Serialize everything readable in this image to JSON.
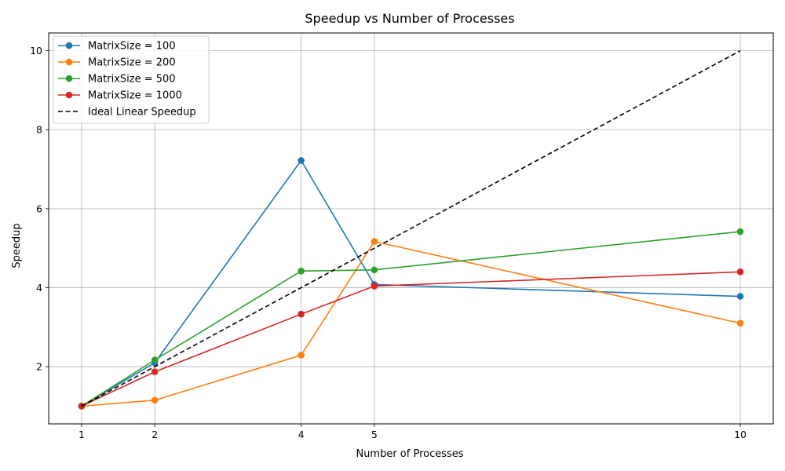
{
  "chart_data": {
    "type": "line",
    "title": "Speedup vs Number of Processes",
    "xlabel": "Number of Processes",
    "ylabel": "Speedup",
    "x": [
      1,
      2,
      4,
      5,
      10
    ],
    "x_ticks": [
      "1",
      "2",
      "4",
      "5",
      "10"
    ],
    "y_ticks": [
      "2",
      "4",
      "6",
      "8",
      "10"
    ],
    "xlim": [
      0.55,
      10.45
    ],
    "ylim": [
      0.55,
      10.45
    ],
    "grid": true,
    "legend_position": "top-left",
    "series": [
      {
        "name": "MatrixSize = 100",
        "color": "#1f77b4",
        "marker": "circle",
        "line_style": "solid",
        "values": [
          1.0,
          2.1,
          7.22,
          4.08,
          3.78
        ]
      },
      {
        "name": "MatrixSize = 200",
        "color": "#ff7f0e",
        "marker": "circle",
        "line_style": "solid",
        "values": [
          1.0,
          1.15,
          2.29,
          5.17,
          3.1
        ]
      },
      {
        "name": "MatrixSize = 500",
        "color": "#2ca02c",
        "marker": "circle",
        "line_style": "solid",
        "values": [
          1.0,
          2.17,
          4.42,
          4.45,
          5.42
        ]
      },
      {
        "name": "MatrixSize = 1000",
        "color": "#d62728",
        "marker": "circle",
        "line_style": "solid",
        "values": [
          1.0,
          1.87,
          3.33,
          4.04,
          4.4
        ]
      },
      {
        "name": "Ideal Linear Speedup",
        "color": "#000000",
        "marker": "none",
        "line_style": "dashed",
        "values": [
          1,
          2,
          4,
          5,
          10
        ]
      }
    ]
  }
}
